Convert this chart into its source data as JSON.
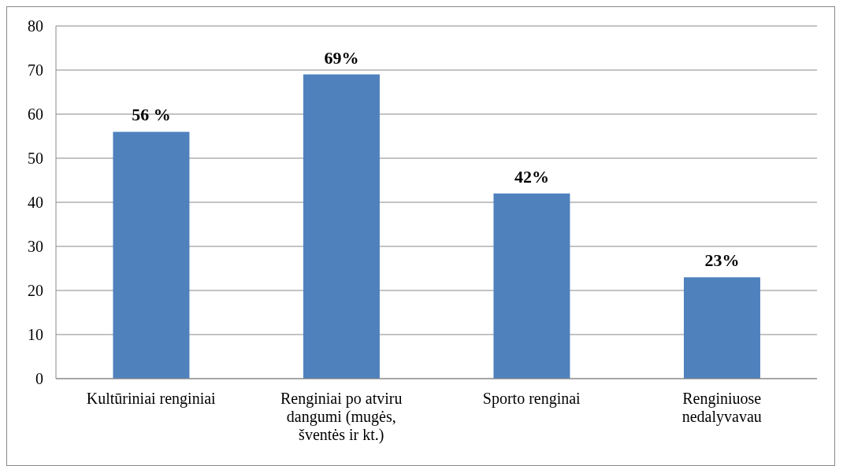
{
  "chart_data": {
    "type": "bar",
    "categories": [
      "Kultūriniai renginiai",
      "Renginiai po atviru dangumi (mugės, šventės ir kt.)",
      "Sporto renginai",
      "Renginiuose nedalyvavau"
    ],
    "values": [
      56,
      69,
      42,
      23
    ],
    "value_labels": [
      "56 %",
      "69%",
      "42%",
      "23%"
    ],
    "color": "#4f81bd",
    "ylim": [
      0,
      80
    ],
    "yticks": [
      0,
      10,
      20,
      30,
      40,
      50,
      60,
      70,
      80
    ],
    "grid": "y",
    "legend": false
  }
}
